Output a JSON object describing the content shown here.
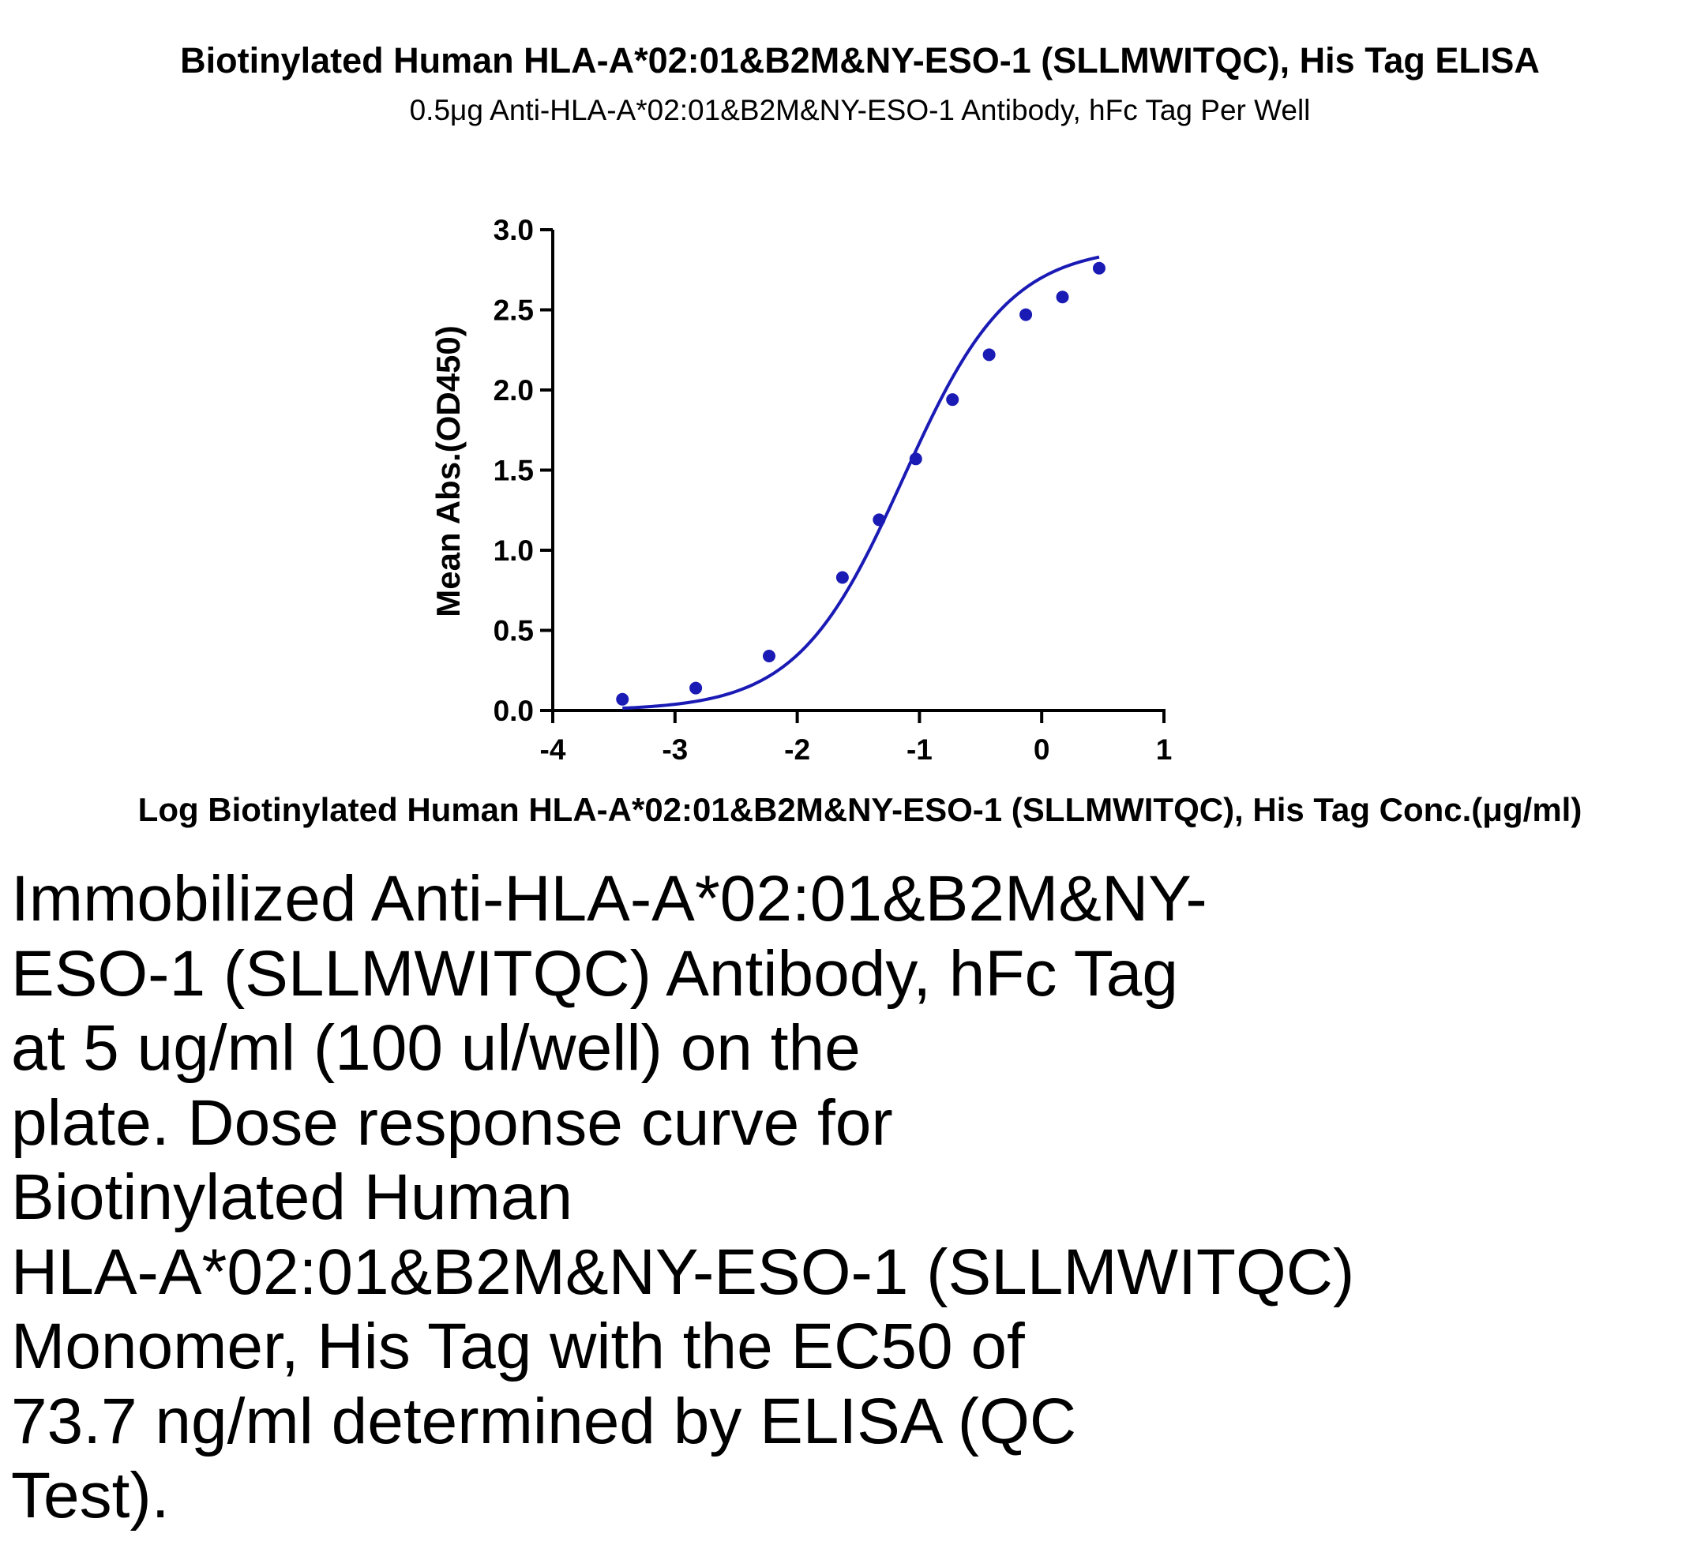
{
  "chart_data": {
    "type": "scatter",
    "title": "Biotinylated Human HLA-A*02:01&B2M&NY-ESO-1 (SLLMWITQC), His Tag ELISA",
    "subtitle": "0.5μg Anti-HLA-A*02:01&B2M&NY-ESO-1 Antibody, hFc Tag Per Well",
    "xlabel": "Log Biotinylated Human HLA-A*02:01&B2M&NY-ESO-1 (SLLMWITQC), His Tag Conc.(μg/ml)",
    "ylabel": "Mean Abs.(OD450)",
    "xlim": [
      -4,
      1
    ],
    "ylim": [
      0,
      3
    ],
    "x_ticks": [
      -4,
      -3,
      -2,
      -1,
      0,
      1
    ],
    "x_tick_labels": [
      "-4",
      "-3",
      "-2",
      "-1",
      "0",
      "1"
    ],
    "y_ticks": [
      0.0,
      0.5,
      1.0,
      1.5,
      2.0,
      2.5,
      3.0
    ],
    "y_tick_labels": [
      "0.0",
      "0.5",
      "1.0",
      "1.5",
      "2.0",
      "2.5",
      "3.0"
    ],
    "grid": false,
    "legend": "none",
    "series": [
      {
        "color": "#1a1ab5",
        "points": [
          {
            "x": -3.43,
            "y": 0.07
          },
          {
            "x": -2.83,
            "y": 0.14
          },
          {
            "x": -2.23,
            "y": 0.34
          },
          {
            "x": -1.63,
            "y": 0.83
          },
          {
            "x": -1.33,
            "y": 1.19
          },
          {
            "x": -1.03,
            "y": 1.57
          },
          {
            "x": -0.73,
            "y": 1.94
          },
          {
            "x": -0.43,
            "y": 2.22
          },
          {
            "x": -0.13,
            "y": 2.47
          },
          {
            "x": 0.17,
            "y": 2.58
          },
          {
            "x": 0.47,
            "y": 2.76
          }
        ],
        "fit": "4PL",
        "fit_params": {
          "bottom": 0.0,
          "top": 2.9,
          "log_ec50": -1.1325,
          "hill_slope": 1.0
        }
      }
    ]
  },
  "caption": {
    "text": "Immobilized Anti-HLA-A*02:01&B2M&NY-\nESO-1 (SLLMWITQC) Antibody, hFc Tag\nat 5 ug/ml (100 ul/well) on the\nplate. Dose response curve for\nBiotinylated Human\nHLA-A*02:01&B2M&NY-ESO-1 (SLLMWITQC)\nMonomer, His Tag with the EC50 of\n73.7 ng/ml determined by ELISA (QC\nTest)."
  }
}
